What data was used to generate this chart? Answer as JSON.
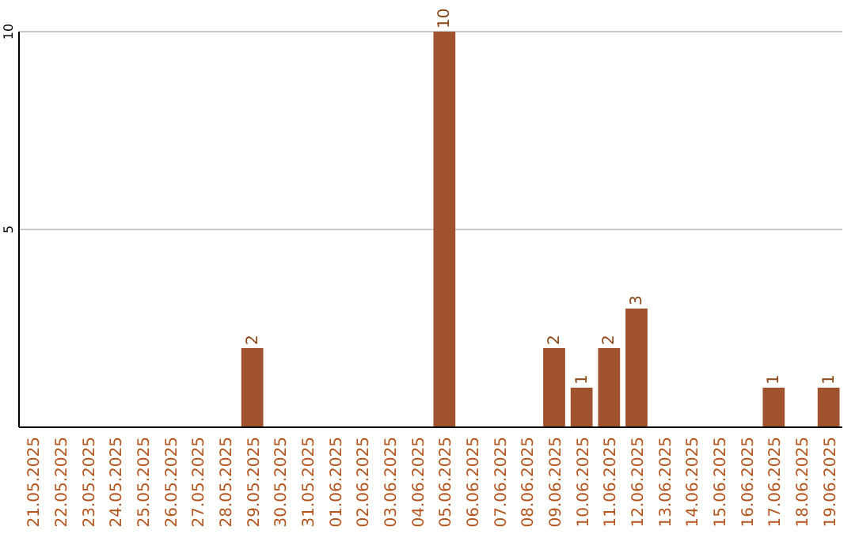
{
  "chart_data": {
    "type": "bar",
    "categories": [
      "21.05.2025",
      "22.05.2025",
      "23.05.2025",
      "24.05.2025",
      "25.05.2025",
      "26.05.2025",
      "27.05.2025",
      "28.05.2025",
      "29.05.2025",
      "30.05.2025",
      "31.05.2025",
      "01.06.2025",
      "02.06.2025",
      "03.06.2025",
      "04.06.2025",
      "05.06.2025",
      "06.06.2025",
      "07.06.2025",
      "08.06.2025",
      "09.06.2025",
      "10.06.2025",
      "11.06.2025",
      "12.06.2025",
      "13.06.2025",
      "14.06.2025",
      "15.06.2025",
      "16.06.2025",
      "17.06.2025",
      "18.06.2025",
      "19.06.2025"
    ],
    "values": [
      0,
      0,
      0,
      0,
      0,
      0,
      0,
      0,
      2,
      0,
      0,
      0,
      0,
      0,
      0,
      10,
      0,
      0,
      0,
      2,
      1,
      2,
      3,
      0,
      0,
      0,
      0,
      1,
      0,
      1
    ],
    "value_labels": [
      null,
      null,
      null,
      null,
      null,
      null,
      null,
      null,
      "2",
      null,
      null,
      null,
      null,
      null,
      null,
      "10",
      null,
      null,
      null,
      "2",
      "1",
      "2",
      "3",
      null,
      null,
      null,
      null,
      "1",
      null,
      "1"
    ],
    "color": "#a0522d",
    "ylim": [
      0,
      10
    ],
    "yticks": [
      5,
      10
    ],
    "grid": "y"
  }
}
